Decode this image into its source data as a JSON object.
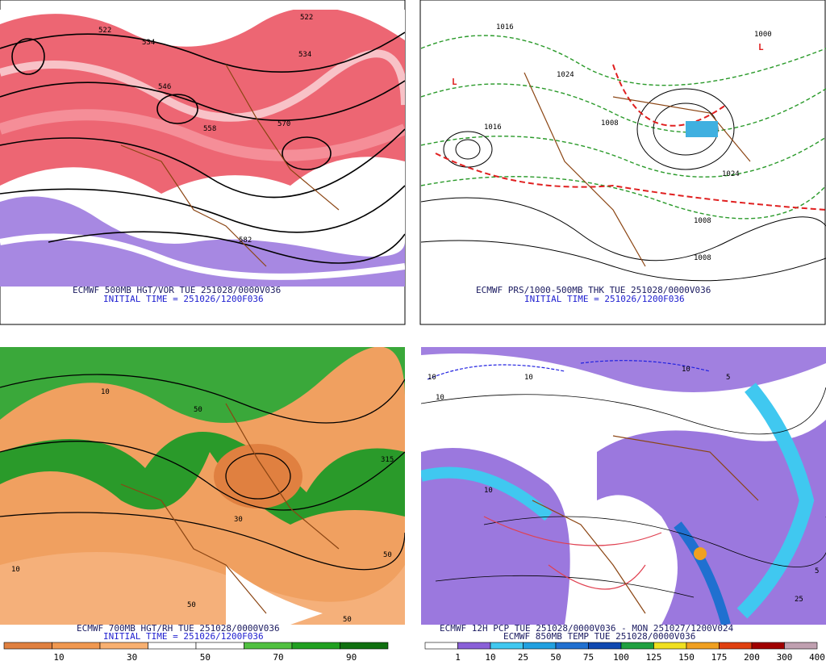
{
  "panels": [
    {
      "caption": "ECMWF 500MB HGT/VOR TUE 251028/0000V036",
      "subcaption": "INITIAL TIME = 251026/1200F036",
      "contour_labels": [
        "522",
        "534",
        "546",
        "558",
        "570",
        "582",
        "522",
        "534"
      ]
    },
    {
      "caption": "ECMWF PRS/1000-500MB THK TUE 251028/0000V036",
      "subcaption": "INITIAL TIME = 251026/1200F036",
      "contour_labels": [
        "1016",
        "1024",
        "1008",
        "1000",
        "1016",
        "1008",
        "1024",
        "1008"
      ]
    },
    {
      "caption": "ECMWF 700MB HGT/RH TUE 251028/0000V036",
      "subcaption": "INITIAL TIME = 251026/1200F036",
      "contour_labels": [
        "10",
        "50",
        "30",
        "315",
        "50",
        "10",
        "50",
        "50"
      ],
      "colorbar": {
        "colors": [
          "#e08040",
          "#f09850",
          "#f8b070",
          "#ffffff",
          "#ffffff",
          "#50c040",
          "#20a020",
          "#107010"
        ],
        "labels": [
          "10",
          "30",
          "50",
          "70",
          "90"
        ]
      }
    },
    {
      "caption": "ECMWF 12H PCP TUE 251028/0000V036 - MON 251027/1200V024",
      "subcaption": "ECMWF 850MB TEMP TUE 251028/0000V036",
      "contour_labels": [
        "10",
        "10",
        "10",
        "10",
        "5",
        "25",
        "10",
        "5"
      ],
      "colorbar": {
        "colors": [
          "#ffffff",
          "#8a60d8",
          "#40c8f0",
          "#20a0e0",
          "#2070d0",
          "#1048b0",
          "#20a040",
          "#f0e020",
          "#f0a020",
          "#e04010",
          "#a00000",
          "#c0a0b0"
        ],
        "labels": [
          "1",
          "10",
          "25",
          "50",
          "75",
          "100",
          "125",
          "150",
          "175",
          "200",
          "300",
          "400"
        ]
      }
    }
  ]
}
